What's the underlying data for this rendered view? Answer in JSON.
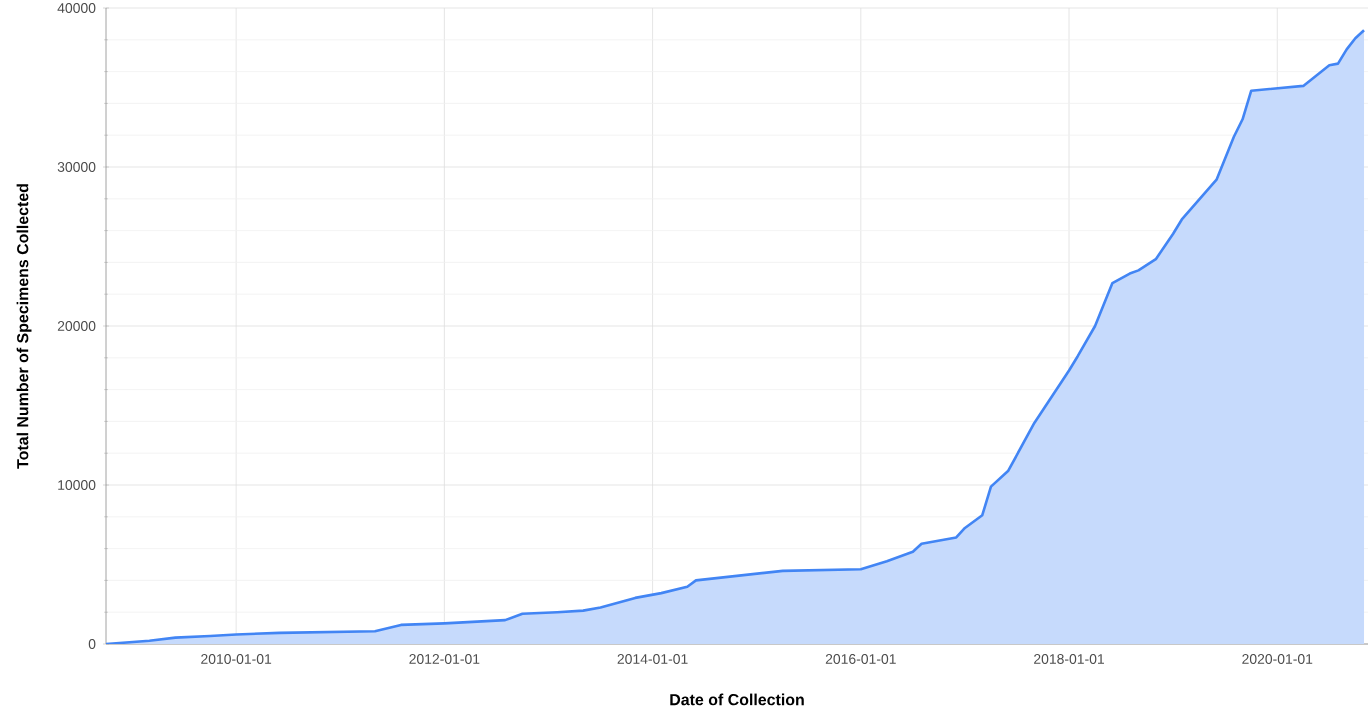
{
  "chart_data": {
    "type": "area",
    "xlabel": "Date of Collection",
    "ylabel": "Total Number of Specimens Collected",
    "x": [
      "2008-10",
      "2009-03",
      "2009-06",
      "2009-10",
      "2010-01",
      "2010-06",
      "2011-05",
      "2011-08",
      "2012-01",
      "2012-08",
      "2012-10",
      "2013-02",
      "2013-05",
      "2013-07",
      "2013-11",
      "2014-02",
      "2014-05",
      "2014-06",
      "2015-04",
      "2016-01",
      "2016-04",
      "2016-07",
      "2016-08",
      "2016-12",
      "2017-01",
      "2017-03",
      "2017-04",
      "2017-06",
      "2017-09",
      "2018-01",
      "2018-02",
      "2018-04",
      "2018-06",
      "2018-08",
      "2018-09",
      "2018-11",
      "2019-01",
      "2019-02",
      "2019-06",
      "2019-08",
      "2019-09",
      "2019-10",
      "2020-04",
      "2020-07",
      "2020-08",
      "2020-09",
      "2020-10",
      "2020-11"
    ],
    "series": [
      {
        "color": "#4285f4",
        "values": [
          0,
          200,
          400,
          500,
          600,
          700,
          800,
          1200,
          1300,
          1500,
          1900,
          2000,
          2100,
          2300,
          2900,
          3200,
          3600,
          4000,
          4600,
          4700,
          5200,
          5800,
          6300,
          6700,
          7300,
          8100,
          9900,
          10900,
          13900,
          17200,
          18100,
          20000,
          22700,
          23300,
          23500,
          24200,
          25800,
          26700,
          29200,
          31900,
          33000,
          34800,
          35100,
          36400,
          36500,
          37400,
          38100,
          38600
        ]
      }
    ],
    "xlim": [
      "2008-10",
      "2020-11-15"
    ],
    "ylim": [
      0,
      40000
    ],
    "xticks": [
      "2010-01-01",
      "2012-01-01",
      "2014-01-01",
      "2016-01-01",
      "2018-01-01",
      "2020-01-01"
    ],
    "yticks": [
      0,
      10000,
      20000,
      30000,
      40000
    ],
    "grid": true
  }
}
